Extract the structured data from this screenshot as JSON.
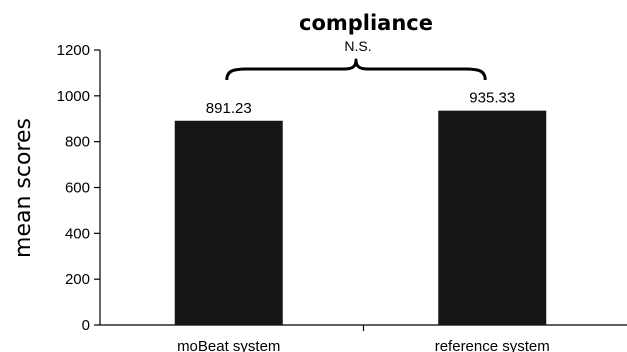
{
  "chart_data": {
    "type": "bar",
    "title": "compliance",
    "xlabel": "",
    "ylabel": "mean scores",
    "categories": [
      "moBeat system",
      "reference system"
    ],
    "values": [
      891.23,
      935.33
    ],
    "data_labels": [
      "891.23",
      "935.33"
    ],
    "ylim": [
      0,
      1200
    ],
    "yticks": [
      0,
      200,
      400,
      600,
      800,
      1000,
      1200
    ],
    "grid": false,
    "legend": "none",
    "bar_color": "#161616",
    "annotation": {
      "text": "N.S.",
      "type": "bracket",
      "spans": [
        "moBeat system",
        "reference system"
      ]
    }
  }
}
